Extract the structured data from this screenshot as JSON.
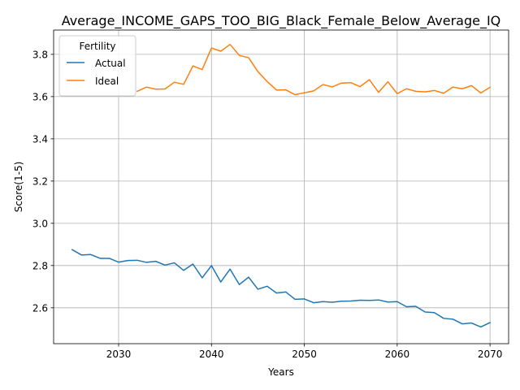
{
  "chart_data": {
    "type": "line",
    "title": "Average_INCOME_GAPS_TOO_BIG_Black_Female_Below_Average_IQ",
    "xlabel": "Years",
    "ylabel": "Score(1-5)",
    "xlim": [
      2023,
      2072
    ],
    "ylim": [
      2.43,
      3.915
    ],
    "xticks": [
      2030,
      2040,
      2050,
      2060,
      2070
    ],
    "yticks": [
      2.6,
      2.8,
      3.0,
      3.2,
      3.4,
      3.6,
      3.8
    ],
    "ytick_labels": [
      "2.6",
      "2.8",
      "3.0",
      "3.2",
      "3.4",
      "3.6",
      "3.8"
    ],
    "grid": true,
    "legend": {
      "title": "Fertility",
      "placement": "top-left"
    },
    "series": [
      {
        "name": "Actual",
        "color": "#1f77b4",
        "x": [
          2025,
          2026,
          2027,
          2028,
          2029,
          2030,
          2031,
          2032,
          2033,
          2034,
          2035,
          2036,
          2037,
          2038,
          2039,
          2040,
          2041,
          2042,
          2043,
          2044,
          2045,
          2046,
          2047,
          2048,
          2049,
          2050,
          2051,
          2052,
          2053,
          2054,
          2055,
          2056,
          2057,
          2058,
          2059,
          2060,
          2061,
          2062,
          2063,
          2064,
          2065,
          2066,
          2067,
          2068,
          2069,
          2070
        ],
        "values": [
          2.875,
          2.85,
          2.852,
          2.834,
          2.834,
          2.816,
          2.824,
          2.825,
          2.815,
          2.82,
          2.802,
          2.813,
          2.777,
          2.807,
          2.742,
          2.8,
          2.722,
          2.783,
          2.71,
          2.745,
          2.688,
          2.702,
          2.67,
          2.675,
          2.64,
          2.642,
          2.624,
          2.629,
          2.626,
          2.631,
          2.632,
          2.636,
          2.635,
          2.637,
          2.627,
          2.629,
          2.605,
          2.607,
          2.58,
          2.577,
          2.55,
          2.546,
          2.524,
          2.528,
          2.509,
          2.53
        ]
      },
      {
        "name": "Ideal",
        "color": "#ff7f0e",
        "x": [
          2032,
          2033,
          2034,
          2035,
          2036,
          2037,
          2038,
          2039,
          2040,
          2041,
          2042,
          2043,
          2044,
          2045,
          2046,
          2047,
          2048,
          2049,
          2050,
          2051,
          2052,
          2053,
          2054,
          2055,
          2056,
          2057,
          2058,
          2059,
          2060,
          2061,
          2062,
          2063,
          2064,
          2065,
          2066,
          2067,
          2068,
          2069,
          2070
        ],
        "values": [
          3.625,
          3.645,
          3.635,
          3.636,
          3.668,
          3.658,
          3.745,
          3.728,
          3.83,
          3.815,
          3.847,
          3.795,
          3.784,
          3.718,
          3.671,
          3.631,
          3.632,
          3.609,
          3.618,
          3.627,
          3.657,
          3.646,
          3.664,
          3.666,
          3.647,
          3.68,
          3.62,
          3.67,
          3.614,
          3.637,
          3.625,
          3.622,
          3.629,
          3.616,
          3.645,
          3.637,
          3.652,
          3.617,
          3.644
        ]
      }
    ]
  }
}
